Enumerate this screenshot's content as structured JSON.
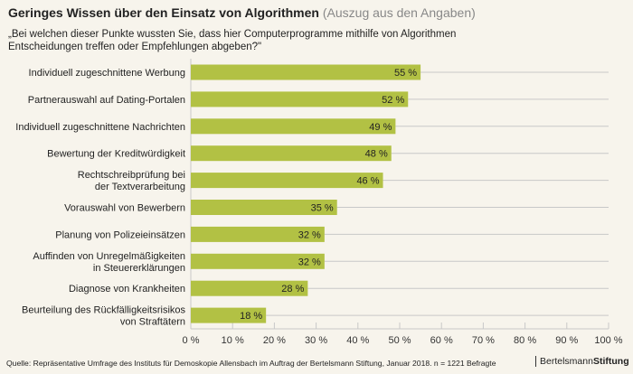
{
  "chart_data": {
    "type": "bar",
    "orientation": "horizontal",
    "title": "Geringes Wissen über den Einsatz von Algorithmen",
    "subtitle": "(Auszug aus den Angaben)",
    "question": "„Bei welchen dieser Punkte wussten Sie, dass hier Computerprogramme mithilfe von Algorithmen Entscheidungen treffen oder Empfehlungen abgeben?\"",
    "categories": [
      [
        "Individuell zugeschnittene Werbung"
      ],
      [
        "Partnerauswahl auf Dating-Portalen"
      ],
      [
        "Individuell zugeschnittene Nachrichten"
      ],
      [
        "Bewertung der Kreditwürdigkeit"
      ],
      [
        "Rechtschreibprüfung bei",
        "der Textverarbeitung"
      ],
      [
        "Vorauswahl von Bewerbern"
      ],
      [
        "Planung von Polizeieinsätzen"
      ],
      [
        "Auffinden von Unregelmäßigkeiten",
        "in Steuererklärungen"
      ],
      [
        "Diagnose von Krankheiten"
      ],
      [
        "Beurteilung des Rückfälligkeitsrisikos",
        "von Straftätern"
      ]
    ],
    "values": [
      55,
      52,
      49,
      48,
      46,
      35,
      32,
      32,
      28,
      18
    ],
    "value_labels": [
      "55 %",
      "52 %",
      "49 %",
      "48 %",
      "46 %",
      "35 %",
      "32 %",
      "32 %",
      "28 %",
      "18 %"
    ],
    "xlim": [
      0,
      100
    ],
    "xticks": [
      "0 %",
      "10 %",
      "20 %",
      "30 %",
      "40 %",
      "50 %",
      "60 %",
      "70 %",
      "80 %",
      "90 %",
      "100 %"
    ],
    "bar_color": "#b2c144",
    "grid_color": "#c8c8c8"
  },
  "footer": {
    "source": "Quelle: Repräsentative Umfrage des Instituts für Demoskopie Allensbach im Auftrag der Bertelsmann Stiftung, Januar 2018. n = 1221 Befragte",
    "logo_part1": "Bertelsmann",
    "logo_part2": "Stiftung"
  }
}
